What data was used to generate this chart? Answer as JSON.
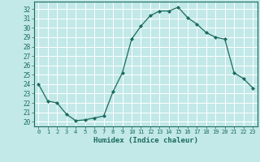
{
  "x": [
    0,
    1,
    2,
    3,
    4,
    5,
    6,
    7,
    8,
    9,
    10,
    11,
    12,
    13,
    14,
    15,
    16,
    17,
    18,
    19,
    20,
    21,
    22,
    23
  ],
  "y": [
    24,
    22.2,
    22.0,
    20.8,
    20.1,
    20.2,
    20.4,
    20.6,
    23.2,
    25.2,
    28.8,
    30.2,
    31.3,
    31.8,
    31.8,
    32.2,
    31.1,
    30.4,
    29.5,
    29.0,
    28.8,
    25.2,
    24.6,
    23.6
  ],
  "xlabel": "Humidex (Indice chaleur)",
  "xlim": [
    -0.5,
    23.5
  ],
  "ylim": [
    19.5,
    32.8
  ],
  "yticks": [
    20,
    21,
    22,
    23,
    24,
    25,
    26,
    27,
    28,
    29,
    30,
    31,
    32
  ],
  "xticks": [
    0,
    1,
    2,
    3,
    4,
    5,
    6,
    7,
    8,
    9,
    10,
    11,
    12,
    13,
    14,
    15,
    16,
    17,
    18,
    19,
    20,
    21,
    22,
    23
  ],
  "line_color": "#1a6b5e",
  "marker": "D",
  "marker_size": 2,
  "bg_color": "#c2e8e8",
  "grid_color": "#ffffff",
  "label_color": "#1a6b5e"
}
